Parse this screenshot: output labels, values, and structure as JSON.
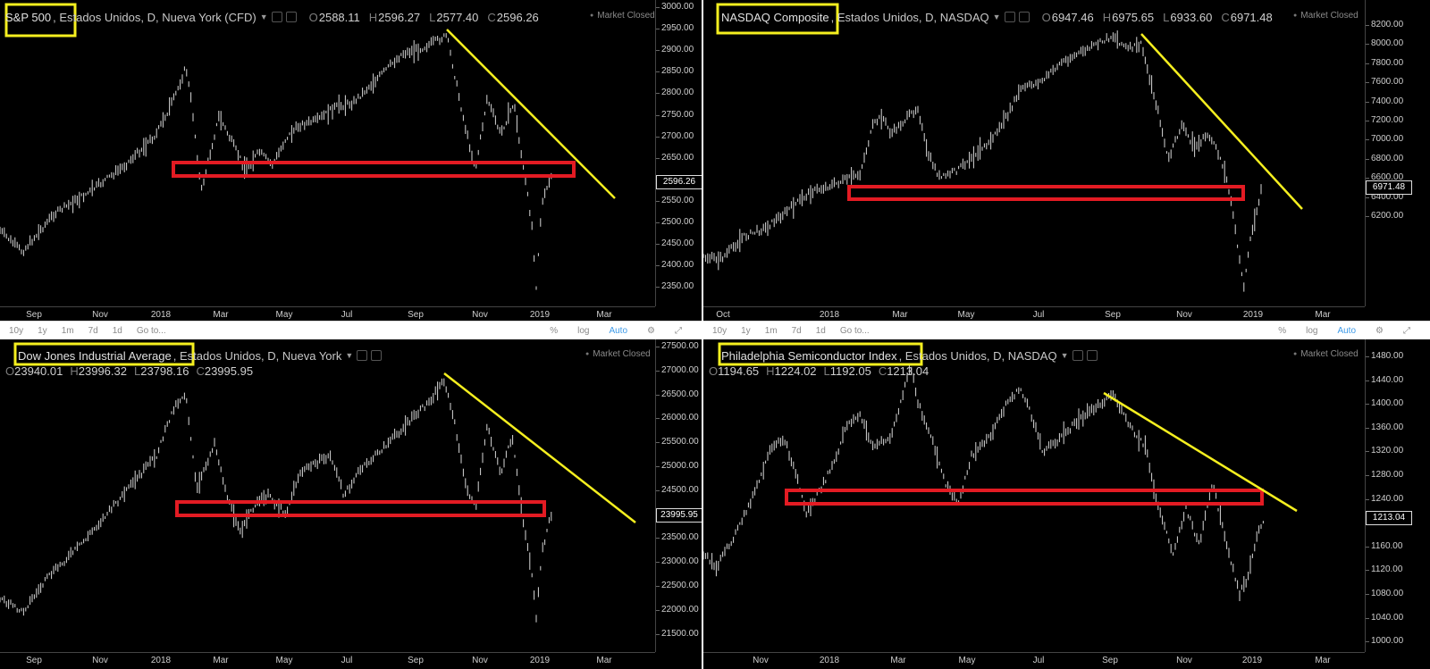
{
  "colors": {
    "background": "#000000",
    "candles": "#d8d8d8",
    "trendline": "#f5ef1f",
    "support_box": "#e31b23",
    "title_highlight": "#f5ef1f",
    "toolbar_bg": "#ffffff",
    "toolbar_text": "#8a8a8a",
    "auto_active": "#3d9ae8"
  },
  "toolbar": {
    "ranges": [
      "10y",
      "1y",
      "1m",
      "7d",
      "1d"
    ],
    "goto": "Go to...",
    "percent": "%",
    "log": "log",
    "auto": "Auto",
    "settings_icon": "gear-icon",
    "fullscreen_icon": "fullscreen-icon"
  },
  "panels": [
    {
      "id": "sp500",
      "symbol": "S&P 500",
      "meta": ", Estados Unidos, D, Nueva York (CFD)",
      "ohlc": {
        "o": "2588.11",
        "h": "2596.27",
        "l": "2577.40",
        "c": "2596.26"
      },
      "market_status": "Market Closed",
      "last_price": "2596.26",
      "price_ticks": [
        "3000.00",
        "2950.00",
        "2900.00",
        "2850.00",
        "2800.00",
        "2750.00",
        "2700.00",
        "2650.00",
        "2600.00",
        "2550.00",
        "2500.00",
        "2450.00",
        "2400.00",
        "2350.00"
      ],
      "time_labels": [
        "Sep",
        "Nov",
        "2018",
        "Mar",
        "May",
        "Jul",
        "Sep",
        "Nov",
        "2019",
        "Mar"
      ]
    },
    {
      "id": "nasdaq",
      "symbol": "NASDAQ Composite",
      "meta": ", Estados Unidos, D, NASDAQ",
      "ohlc": {
        "o": "6947.46",
        "h": "6975.65",
        "l": "6933.60",
        "c": "6971.48"
      },
      "market_status": "Market Closed",
      "last_price": "6971.48",
      "price_ticks": [
        "8200.00",
        "8000.00",
        "7800.00",
        "7600.00",
        "7400.00",
        "7200.00",
        "7000.00",
        "6800.00",
        "6600.00",
        "6400.00",
        "6200.00"
      ],
      "time_labels": [
        "Oct",
        "2018",
        "Mar",
        "May",
        "Jul",
        "Sep",
        "Nov",
        "2019",
        "Mar"
      ]
    },
    {
      "id": "dow",
      "symbol": "Dow Jones Industrial Average",
      "meta": ", Estados Unidos, D, Nueva York",
      "ohlc": {
        "o": "23940.01",
        "h": "23996.32",
        "l": "23798.16",
        "c": "23995.95"
      },
      "market_status": "Market Closed",
      "last_price": "23995.95",
      "price_ticks": [
        "27500.00",
        "27000.00",
        "26500.00",
        "26000.00",
        "25500.00",
        "25000.00",
        "24500.00",
        "24000.00",
        "23500.00",
        "23000.00",
        "22500.00",
        "22000.00",
        "21500.00"
      ],
      "time_labels": [
        "Sep",
        "Nov",
        "2018",
        "Mar",
        "May",
        "Jul",
        "Sep",
        "Nov",
        "2019",
        "Mar"
      ]
    },
    {
      "id": "sox",
      "symbol": "Philadelphia Semiconductor Index",
      "meta": ", Estados Unidos, D, NASDAQ",
      "ohlc": {
        "o": "1194.65",
        "h": "1224.02",
        "l": "1192.05",
        "c": "1213.04"
      },
      "market_status": "Market Closed",
      "last_price": "1213.04",
      "price_ticks": [
        "1480.00",
        "1440.00",
        "1400.00",
        "1360.00",
        "1320.00",
        "1280.00",
        "1240.00",
        "1200.00",
        "1160.00",
        "1120.00",
        "1080.00",
        "1040.00",
        "1000.00"
      ],
      "time_labels": [
        "Nov",
        "2018",
        "Mar",
        "May",
        "Jul",
        "Sep",
        "Nov",
        "2019",
        "Mar"
      ]
    }
  ]
}
